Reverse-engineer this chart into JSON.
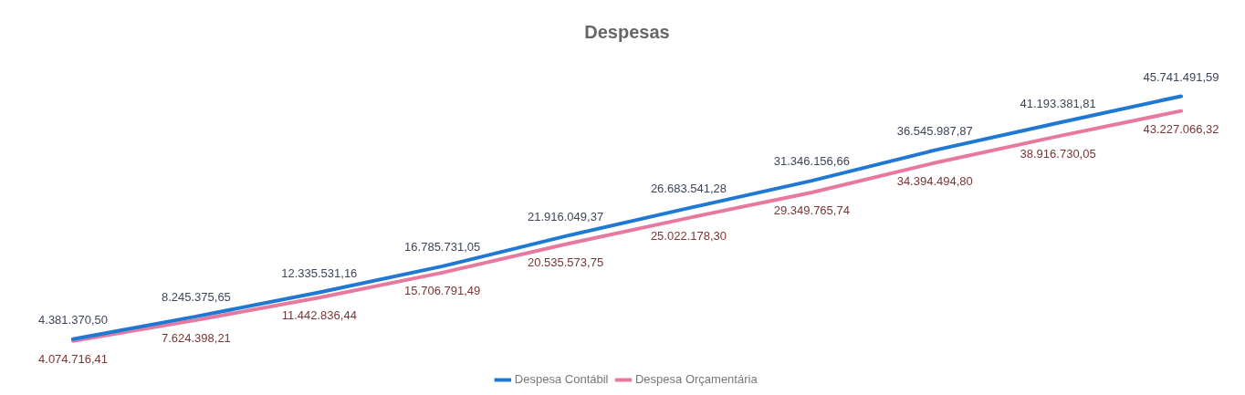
{
  "chart_data": {
    "type": "line",
    "title": "Despesas",
    "categories": [
      null,
      null,
      null,
      null,
      null,
      null,
      null,
      null,
      null,
      null
    ],
    "legend": "bottom",
    "marker": "none",
    "line_style": "solid",
    "series": [
      {
        "name": "Despesa Contábil",
        "color": "#1f78d1",
        "values": [
          4381370.5,
          8245375.65,
          12335531.16,
          16785731.05,
          21916049.37,
          26683541.28,
          31346156.66,
          36545987.87,
          41193381.81,
          45741491.59
        ],
        "value_labels": [
          "4.381.370,50",
          "8.245.375,65",
          "12.335.531,16",
          "16.785.731,05",
          "21.916.049,37",
          "26.683.541,28",
          "31.346.156,66",
          "36.545.987,87",
          "41.193.381,81",
          "45.741.491,59"
        ]
      },
      {
        "name": "Despesa Orçamentária",
        "color": "#e8799e",
        "values": [
          4074716.41,
          7624398.21,
          11442836.44,
          15706791.49,
          20535573.75,
          25022178.3,
          29349765.74,
          34394494.8,
          38916730.05,
          43227066.32
        ],
        "value_labels": [
          "4.074.716,41",
          "7.624.398,21",
          "11.442.836,44",
          "15.706.791,49",
          "20.535.573,75",
          "25.022.178,30",
          "29.349.765,74",
          "34.394.494,80",
          "38.916.730,05",
          "43.227.066,32"
        ]
      }
    ]
  }
}
